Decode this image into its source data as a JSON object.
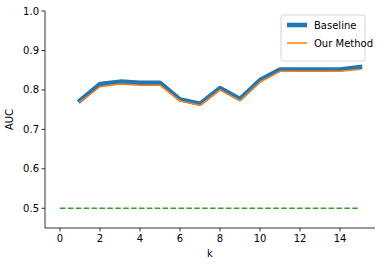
{
  "chart_data": {
    "type": "line",
    "x_label": "k",
    "y_label": "AUC",
    "x": [
      0,
      1,
      2,
      3,
      4,
      5,
      6,
      7,
      8,
      9,
      10,
      11,
      12,
      13,
      14,
      15
    ],
    "series": [
      {
        "name": "Baseline",
        "color": "#1f77b4",
        "line_style": "solid",
        "values": [
          null,
          0.773,
          0.815,
          0.821,
          0.818,
          0.818,
          0.776,
          0.765,
          0.805,
          0.777,
          0.825,
          0.852,
          0.852,
          0.852,
          0.852,
          0.858
        ]
      },
      {
        "name": "Our Method",
        "color": "#ff7f0e",
        "line_style": "solid",
        "values": [
          null,
          0.77,
          0.808,
          0.815,
          0.812,
          0.812,
          0.772,
          0.761,
          0.8,
          0.773,
          0.82,
          0.847,
          0.847,
          0.847,
          0.847,
          0.852
        ]
      },
      {
        "color": "#2ca02c",
        "line_style": "dashed",
        "values": [
          0.5,
          0.5,
          0.5,
          0.5,
          0.5,
          0.5,
          0.5,
          0.5,
          0.5,
          0.5,
          0.5,
          0.5,
          0.5,
          0.5,
          0.5,
          0.5
        ]
      }
    ],
    "xlim": [
      -0.75,
      15.75
    ],
    "xticks": [
      0,
      2,
      4,
      6,
      8,
      10,
      12,
      14
    ],
    "ylim": [
      0.45,
      1.0
    ],
    "yticks": [
      0.5,
      0.6,
      0.7,
      0.8,
      0.9,
      {
        "value": 1.0,
        "label": "1.0"
      }
    ],
    "grid": false,
    "legend": "upper right"
  }
}
